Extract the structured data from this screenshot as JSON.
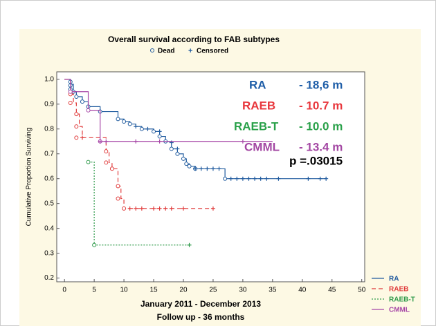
{
  "chart_data": {
    "type": "survival",
    "title": "Overall survival according to FAB subtypes",
    "marker_legend": [
      "Dead",
      "Censored"
    ],
    "x_label": [
      "January 2011 - December 2013",
      "Follow up - 36 months"
    ],
    "y_label": "Cumulative Proportion Surviving",
    "xlim": [
      -1.3,
      50.5
    ],
    "xticks": [
      0,
      5,
      10,
      15,
      20,
      25,
      30,
      35,
      40,
      45,
      50
    ],
    "ylim": [
      0.185,
      1.03
    ],
    "yticks": [
      0.2,
      0.3,
      0.4,
      0.5,
      0.6,
      0.7,
      0.8,
      0.9,
      {
        "value": 1.0,
        "label": "1.0"
      }
    ],
    "series": [
      {
        "name": "RA",
        "color": "#1f5a9e",
        "dash": "",
        "x": [
          0,
          1,
          1.5,
          2,
          3,
          4,
          6,
          9,
          10,
          11,
          12,
          13,
          15,
          16,
          17,
          18,
          19,
          20,
          20.5,
          21,
          22,
          27,
          44
        ],
        "values": [
          1.0,
          0.98,
          0.95,
          0.93,
          0.91,
          0.89,
          0.87,
          0.84,
          0.83,
          0.82,
          0.81,
          0.8,
          0.79,
          0.77,
          0.75,
          0.72,
          0.7,
          0.68,
          0.66,
          0.65,
          0.64,
          0.6,
          0.6
        ],
        "dead_x": [
          1,
          1,
          1,
          1.5,
          2,
          3,
          4,
          6,
          9,
          10,
          11,
          13,
          15,
          16,
          17,
          18,
          19,
          20,
          20.5,
          21,
          22,
          27
        ],
        "dead_y": [
          0.99,
          0.975,
          0.96,
          0.95,
          0.93,
          0.91,
          0.89,
          0.87,
          0.84,
          0.83,
          0.82,
          0.8,
          0.79,
          0.77,
          0.75,
          0.72,
          0.7,
          0.68,
          0.66,
          0.65,
          0.64,
          0.6
        ],
        "censored_x": [
          12,
          14,
          16,
          18,
          19,
          22,
          23,
          24,
          25,
          26,
          28,
          29,
          30,
          31,
          32,
          33,
          34,
          36,
          41,
          43,
          44
        ],
        "censored_y": [
          0.81,
          0.8,
          0.79,
          0.745,
          0.72,
          0.64,
          0.64,
          0.64,
          0.64,
          0.64,
          0.6,
          0.6,
          0.6,
          0.6,
          0.6,
          0.6,
          0.6,
          0.6,
          0.6,
          0.6,
          0.6
        ]
      },
      {
        "name": "RAEB",
        "color": "#e03a3a",
        "dash": "6 4",
        "x": [
          0,
          1,
          1.5,
          2,
          2.5,
          3,
          7,
          7.5,
          8,
          9,
          9.5,
          10,
          25
        ],
        "values": [
          1.0,
          0.94,
          0.905,
          0.86,
          0.81,
          0.765,
          0.71,
          0.665,
          0.64,
          0.57,
          0.52,
          0.48,
          0.48
        ],
        "dead_x": [
          1,
          1,
          2,
          2,
          2,
          7,
          7,
          8,
          9,
          9,
          10
        ],
        "dead_y": [
          0.94,
          0.905,
          0.86,
          0.81,
          0.765,
          0.71,
          0.665,
          0.64,
          0.57,
          0.52,
          0.48
        ],
        "censored_x": [
          3,
          11,
          12,
          13,
          15,
          16,
          17,
          18,
          20,
          25
        ],
        "censored_y": [
          0.765,
          0.48,
          0.48,
          0.48,
          0.48,
          0.48,
          0.48,
          0.48,
          0.48,
          0.48
        ]
      },
      {
        "name": "RAEB-T",
        "color": "#2e9a4a",
        "dash": "2 2",
        "x": [
          4,
          5,
          21
        ],
        "values": [
          0.667,
          0.333,
          0.333
        ],
        "dead_x": [
          4,
          5
        ],
        "dead_y": [
          0.667,
          0.333
        ],
        "censored_x": [
          21
        ],
        "censored_y": [
          0.333
        ]
      },
      {
        "name": "CMML",
        "color": "#a646a6",
        "dash": "",
        "x": [
          0,
          1,
          4,
          6,
          35
        ],
        "values": [
          1.0,
          0.95,
          0.875,
          0.75,
          0.75
        ],
        "dead_x": [
          1,
          4,
          6
        ],
        "dead_y": [
          0.95,
          0.875,
          0.75
        ],
        "censored_x": [
          6,
          7,
          12,
          16,
          30
        ],
        "censored_y": [
          0.75,
          0.75,
          0.75,
          0.75,
          0.75
        ]
      }
    ],
    "annotations": [
      {
        "label": "RA",
        "text": "- 18,6 m",
        "color": "#1f5ea8"
      },
      {
        "label": "RAEB",
        "text": "- 10.7 m",
        "color": "#e8373d"
      },
      {
        "label": "RAEB-T",
        "text": "- 10.0 m",
        "color": "#2aa14a"
      },
      {
        "label": "CMML",
        "text": "- 13.4 m",
        "color": "#a347a3"
      }
    ],
    "p_value": "p =.03015"
  }
}
